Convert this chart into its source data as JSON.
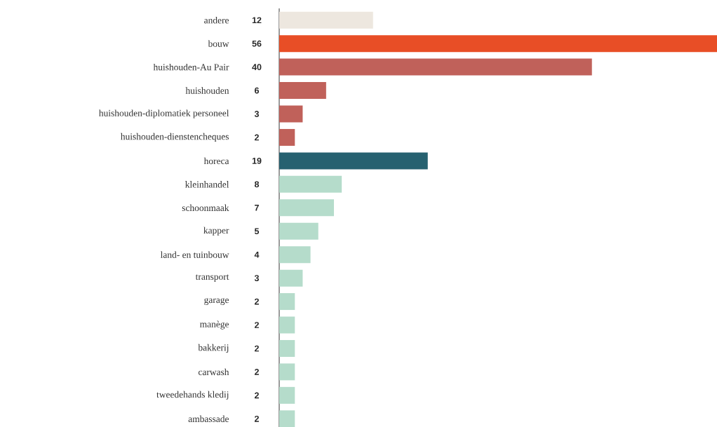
{
  "chart_data": {
    "type": "bar",
    "orientation": "horizontal",
    "data_labels": true,
    "categories": [
      "andere",
      "bouw",
      "huishouden-Au Pair",
      "huishouden",
      "huishouden-diplomatiek personeel",
      "huishouden-dienstencheques",
      "horeca",
      "kleinhandel",
      "schoonmaak",
      "kapper",
      "land- en tuinbouw",
      "transport",
      "garage",
      "manège",
      "bakkerij",
      "carwash",
      "tweedehands kledij",
      "ambassade"
    ],
    "values": [
      12,
      56,
      40,
      6,
      3,
      2,
      19,
      8,
      7,
      5,
      4,
      3,
      2,
      2,
      2,
      2,
      2,
      2
    ],
    "colors": [
      "#ede7df",
      "#e84e26",
      "#c0615a",
      "#c0615a",
      "#c0615a",
      "#c0615a",
      "#266170",
      "#b5dccb",
      "#b5dccb",
      "#b5dccb",
      "#b5dccb",
      "#b5dccb",
      "#b5dccb",
      "#b5dccb",
      "#b5dccb",
      "#b5dccb",
      "#b5dccb",
      "#b5dccb"
    ]
  }
}
